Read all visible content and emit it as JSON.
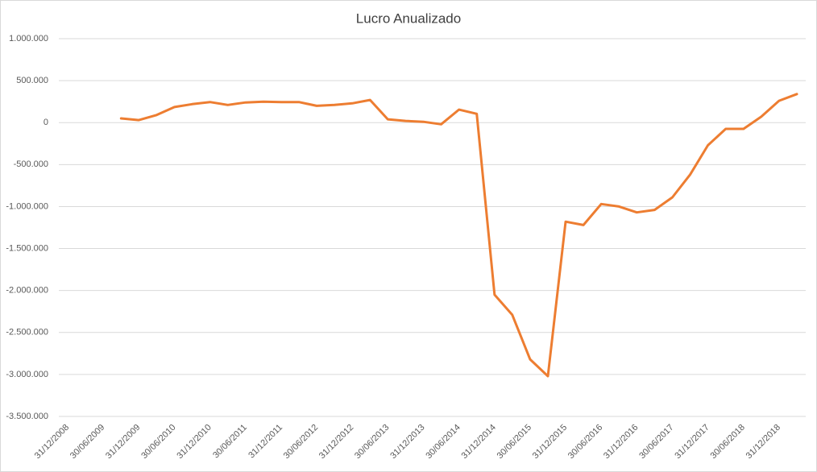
{
  "chart_data": {
    "type": "line",
    "title": "Lucro Anualizado",
    "categories": [
      "31/12/2008",
      null,
      "30/06/2009",
      null,
      "31/12/2009",
      null,
      "30/06/2010",
      null,
      "31/12/2010",
      null,
      "30/06/2011",
      null,
      "31/12/2011",
      null,
      "30/06/2012",
      null,
      "31/12/2012",
      null,
      "30/06/2013",
      null,
      "31/12/2013",
      null,
      "30/06/2014",
      null,
      "31/12/2014",
      null,
      "30/06/2015",
      null,
      "31/12/2015",
      null,
      "30/06/2016",
      null,
      "31/12/2016",
      null,
      "30/06/2017",
      null,
      "31/12/2017",
      null,
      "30/06/2018",
      null,
      "31/12/2018",
      null
    ],
    "series": [
      {
        "name": "Lucro Anualizado",
        "color": "#ed7d31",
        "values": [
          null,
          null,
          null,
          50000,
          30000,
          90000,
          185000,
          220000,
          245000,
          210000,
          240000,
          250000,
          245000,
          245000,
          200000,
          210000,
          230000,
          270000,
          40000,
          20000,
          10000,
          -20000,
          155000,
          105000,
          -2050000,
          -2290000,
          -2820000,
          -3020000,
          -1180000,
          -1220000,
          -970000,
          -1000000,
          -1070000,
          -1040000,
          -890000,
          -620000,
          -270000,
          -75000,
          -75000,
          70000,
          260000,
          340000
        ]
      }
    ],
    "ylim": [
      -3500000,
      1000000
    ],
    "yticks": [
      {
        "value": -3500000,
        "label": "-3.500.000"
      },
      {
        "value": -3000000,
        "label": "-3.000.000"
      },
      {
        "value": -2500000,
        "label": "-2.500.000"
      },
      {
        "value": -2000000,
        "label": "-2.000.000"
      },
      {
        "value": -1500000,
        "label": "-1.500.000"
      },
      {
        "value": -1000000,
        "label": "-1.000.000"
      },
      {
        "value": -500000,
        "label": "-500.000"
      },
      0,
      {
        "value": 500000,
        "label": "500.000"
      },
      {
        "value": 1000000,
        "label": "1.000.000"
      }
    ],
    "grid": true
  }
}
